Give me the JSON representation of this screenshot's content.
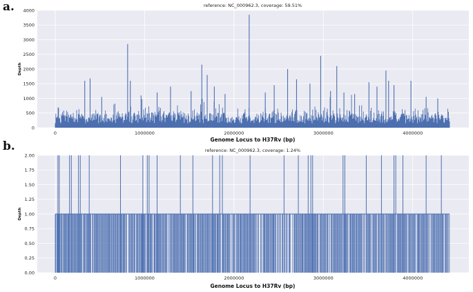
{
  "panels": [
    {
      "label": "a.",
      "chart_data": {
        "type": "line",
        "title": "reference: NC_000962.3, coverage: 59.51%",
        "xlabel": "Genome Locus to H37Rv (bp)",
        "ylabel": "Depth",
        "xlim": [
          0,
          4411532
        ],
        "ylim": [
          0,
          4000
        ],
        "xticks": [
          0,
          1000000,
          2000000,
          3000000,
          4000000
        ],
        "xtick_labels": [
          "0",
          "1000000",
          "2000000",
          "3000000",
          "4000000"
        ],
        "yticks": [
          0,
          500,
          1000,
          1500,
          2000,
          2500,
          3000,
          3500,
          4000
        ],
        "ytick_labels": [
          "0",
          "500",
          "1000",
          "1500",
          "2000",
          "2500",
          "3000",
          "3500",
          "4000"
        ],
        "grid": true,
        "series": [
          {
            "color": "#4c6fb0",
            "baseline_range": [
              150,
              700
            ],
            "peaks": [
              {
                "x": 330000,
                "y": 1600
              },
              {
                "x": 390000,
                "y": 1680
              },
              {
                "x": 520000,
                "y": 1050
              },
              {
                "x": 810000,
                "y": 2850
              },
              {
                "x": 840000,
                "y": 1600
              },
              {
                "x": 960000,
                "y": 1100
              },
              {
                "x": 1140000,
                "y": 1200
              },
              {
                "x": 1290000,
                "y": 1400
              },
              {
                "x": 1520000,
                "y": 1250
              },
              {
                "x": 1640000,
                "y": 2150
              },
              {
                "x": 1700000,
                "y": 1800
              },
              {
                "x": 1780000,
                "y": 1400
              },
              {
                "x": 1900000,
                "y": 1150
              },
              {
                "x": 2170000,
                "y": 3850
              },
              {
                "x": 2350000,
                "y": 1200
              },
              {
                "x": 2450000,
                "y": 1450
              },
              {
                "x": 2600000,
                "y": 2000
              },
              {
                "x": 2700000,
                "y": 1650
              },
              {
                "x": 2850000,
                "y": 1500
              },
              {
                "x": 2970000,
                "y": 2450
              },
              {
                "x": 3080000,
                "y": 1250
              },
              {
                "x": 3150000,
                "y": 2100
              },
              {
                "x": 3230000,
                "y": 1200
              },
              {
                "x": 3350000,
                "y": 1150
              },
              {
                "x": 3510000,
                "y": 1550
              },
              {
                "x": 3600000,
                "y": 1400
              },
              {
                "x": 3700000,
                "y": 1950
              },
              {
                "x": 3730000,
                "y": 1600
              },
              {
                "x": 3790000,
                "y": 1450
              },
              {
                "x": 3980000,
                "y": 1600
              },
              {
                "x": 4150000,
                "y": 1050
              },
              {
                "x": 4280000,
                "y": 1000
              }
            ]
          }
        ]
      }
    },
    {
      "label": "b.",
      "chart_data": {
        "type": "line",
        "title": "reference: NC_000962.3, coverage: 1.24%",
        "xlabel": "Genome Locus to H37Rv (bp)",
        "ylabel": "Depth",
        "xlim": [
          0,
          4411532
        ],
        "ylim": [
          0,
          2
        ],
        "xticks": [
          0,
          1000000,
          2000000,
          3000000,
          4000000
        ],
        "xtick_labels": [
          "0",
          "1000000",
          "2000000",
          "3000000",
          "4000000"
        ],
        "yticks": [
          0,
          0.25,
          0.5,
          0.75,
          1.0,
          1.25,
          1.5,
          1.75,
          2.0
        ],
        "ytick_labels": [
          "0.00",
          "0.25",
          "0.50",
          "0.75",
          "1.00",
          "1.25",
          "1.50",
          "1.75",
          "2.00"
        ],
        "grid": true,
        "series": [
          {
            "color": "#4c6fb0",
            "baseline_value": 1,
            "depth2_positions": [
              30000,
              45000,
              160000,
              180000,
              260000,
              280000,
              380000,
              730000,
              980000,
              1030000,
              1050000,
              1140000,
              1400000,
              1540000,
              1760000,
              1840000,
              1870000,
              2180000,
              2560000,
              2720000,
              2830000,
              2860000,
              2880000,
              3220000,
              3240000,
              3480000,
              3650000,
              3790000,
              3810000,
              3890000,
              4150000,
              4320000
            ]
          }
        ]
      }
    }
  ]
}
